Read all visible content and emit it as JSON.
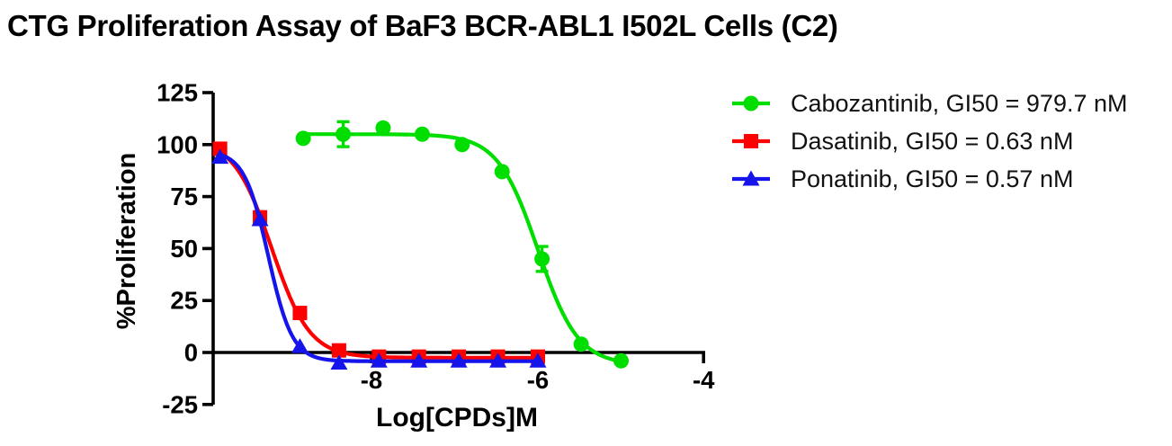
{
  "chart_data": {
    "type": "line",
    "title": "CTG Proliferation Assay of BaF3 BCR-ABL1 I502L Cells (C2)",
    "xlabel": "Log[CPDs]M",
    "ylabel": "%Proliferation",
    "xlim": [
      -9.9,
      -4.0
    ],
    "ylim": [
      -25,
      125
    ],
    "xticks": [
      -8,
      -6,
      -4
    ],
    "yticks": [
      125,
      100,
      75,
      50,
      25,
      0,
      -25
    ],
    "grid": false,
    "legend_position": "right-outside",
    "series": [
      {
        "drug": "Cabozantinib",
        "gi50_nM": 979.7,
        "name": "Cabozantinib, GI50 = 979.7 nM",
        "color": "#00DE00",
        "marker": "circle",
        "x": [
          -8.82,
          -8.34,
          -7.86,
          -7.39,
          -6.91,
          -6.43,
          -5.95,
          -5.48,
          -5.0
        ],
        "y": [
          103,
          105,
          108,
          105,
          100,
          87,
          45,
          4,
          -4
        ],
        "yerr": [
          0,
          6,
          0,
          0,
          0,
          0,
          6,
          0,
          0
        ],
        "fit": {
          "top": 105,
          "bottom": -6,
          "logec50": -6.0,
          "hill": -1.8
        }
      },
      {
        "drug": "Dasatinib",
        "gi50_nM": 0.63,
        "name": "Dasatinib, GI50 = 0.63 nM",
        "color": "#FF0000",
        "marker": "square",
        "x": [
          -9.82,
          -9.34,
          -8.86,
          -8.39,
          -7.91,
          -7.43,
          -6.95,
          -6.48,
          -6.0
        ],
        "y": [
          98,
          65,
          19,
          1,
          -2,
          -2,
          -2,
          -2,
          -2
        ],
        "yerr": [
          0,
          0,
          0,
          0,
          0,
          0,
          0,
          0,
          0
        ],
        "fit": {
          "top": 103,
          "bottom": -2.5,
          "logec50": -9.2,
          "hill": -1.9
        }
      },
      {
        "drug": "Ponatinib",
        "gi50_nM": 0.57,
        "name": "Ponatinib, GI50 = 0.57 nM",
        "color": "#1414EB",
        "marker": "triangle",
        "x": [
          -9.82,
          -9.34,
          -8.86,
          -8.39,
          -7.91,
          -7.43,
          -6.95,
          -6.48,
          -6.0
        ],
        "y": [
          94,
          64,
          3,
          -5,
          -4,
          -4,
          -4,
          -4,
          -4
        ],
        "yerr": [
          0,
          0,
          0,
          0,
          0,
          0,
          0,
          0,
          0
        ],
        "fit": {
          "top": 97,
          "bottom": -4.2,
          "logec50": -9.24,
          "hill": -3.0
        }
      }
    ]
  }
}
